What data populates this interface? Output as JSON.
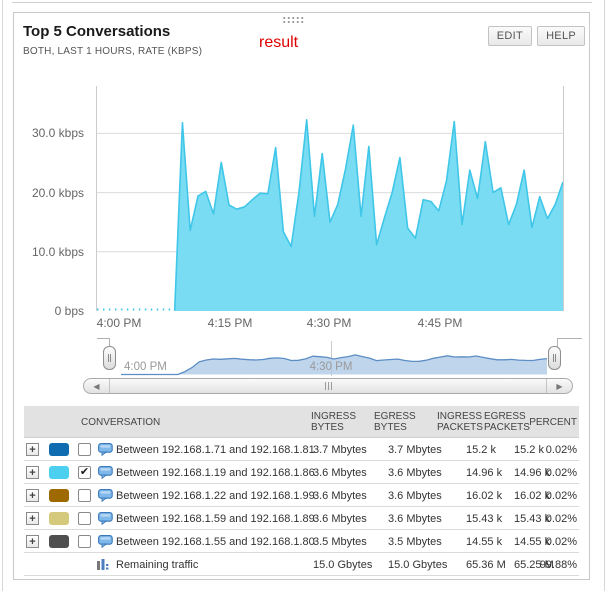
{
  "widget": {
    "title": "Top 5 Conversations",
    "subtitle": "BOTH, LAST 1 HOURS, RATE (KBPS)",
    "annotation": "result",
    "buttons": {
      "edit": "EDIT",
      "help": "HELP"
    }
  },
  "colors": {
    "chart_fill": "#7ADCF2",
    "chart_stroke": "#3FC6E8",
    "brush_fill": "#AFCBE7",
    "brush_stroke": "#5C8EC4",
    "gridline": "#DCDCDC"
  },
  "chart_data": {
    "type": "area",
    "title": "Top 5 Conversations",
    "xlabel": "",
    "ylabel": "rate (kbps)",
    "ylim": [
      0,
      38
    ],
    "x_range": [
      "4:00 PM",
      "5:00 PM"
    ],
    "x_interval": "1 minute",
    "grid": true,
    "y_ticks": [
      {
        "label": "0 bps",
        "value": 0
      },
      {
        "label": "10.0 kbps",
        "value": 10
      },
      {
        "label": "20.0 kbps",
        "value": 20
      },
      {
        "label": "30.0 kbps",
        "value": 30
      }
    ],
    "x_ticks": [
      "4:00 PM",
      "4:15 PM",
      "4:30 PM",
      "4:45 PM"
    ],
    "series": [
      {
        "name": "Between 192.168.1.19 and 192.168.1.86",
        "unit": "kbps",
        "color": "#4DD0F0",
        "values": [
          0.05,
          0.05,
          0.05,
          0.05,
          0.05,
          0.05,
          0.05,
          0.05,
          0.05,
          0.05,
          0.05,
          31.8,
          13.6,
          19.4,
          20.2,
          16.4,
          25.1,
          17.9,
          17.2,
          17.6,
          18.8,
          19.9,
          19.8,
          27.6,
          13.4,
          10.9,
          20.0,
          32.3,
          16.0,
          26.6,
          15.0,
          18.0,
          24.0,
          31.4,
          16.0,
          27.8,
          11.2,
          15.7,
          20.0,
          25.9,
          14.0,
          12.3,
          18.8,
          18.5,
          16.9,
          22.0,
          32.0,
          14.6,
          23.8,
          19.0,
          28.6,
          20.0,
          20.8,
          14.6,
          18.0,
          23.8,
          14.1,
          19.3,
          15.6,
          18.0,
          21.8
        ]
      }
    ]
  },
  "brush": {
    "labels": [
      "4:00 PM",
      "4:30 PM"
    ]
  },
  "table": {
    "headers": {
      "conversation": "CONVERSATION",
      "ingress_bytes": "INGRESS BYTES",
      "egress_bytes": "EGRESS BYTES",
      "ingress_packets": "INGRESS PACKETS",
      "egress_packets": "EGRESS PACKETS",
      "percent": "PERCENT"
    },
    "rows": [
      {
        "color": "#0F6CB0",
        "checked": false,
        "conversation": "Between 192.168.1.71 and 192.168.1.81",
        "ingress_bytes": "3.7 Mbytes",
        "egress_bytes": "3.7 Mbytes",
        "ingress_packets": "15.2 k",
        "egress_packets": "15.2 k",
        "percent": "0.02%"
      },
      {
        "color": "#4DD0F0",
        "checked": true,
        "conversation": "Between 192.168.1.19 and 192.168.1.86",
        "ingress_bytes": "3.6 Mbytes",
        "egress_bytes": "3.6 Mbytes",
        "ingress_packets": "14.96 k",
        "egress_packets": "14.96 k",
        "percent": "0.02%"
      },
      {
        "color": "#9E6A00",
        "checked": false,
        "conversation": "Between 192.168.1.22 and 192.168.1.99",
        "ingress_bytes": "3.6 Mbytes",
        "egress_bytes": "3.6 Mbytes",
        "ingress_packets": "16.02 k",
        "egress_packets": "16.02 k",
        "percent": "0.02%"
      },
      {
        "color": "#D5C97D",
        "checked": false,
        "conversation": "Between 192.168.1.59 and 192.168.1.89",
        "ingress_bytes": "3.6 Mbytes",
        "egress_bytes": "3.6 Mbytes",
        "ingress_packets": "15.43 k",
        "egress_packets": "15.43 k",
        "percent": "0.02%"
      },
      {
        "color": "#4F4F4F",
        "checked": false,
        "conversation": "Between 192.168.1.55 and 192.168.1.80",
        "ingress_bytes": "3.5 Mbytes",
        "egress_bytes": "3.5 Mbytes",
        "ingress_packets": "14.55 k",
        "egress_packets": "14.55 k",
        "percent": "0.02%"
      }
    ],
    "footer": {
      "label": "Remaining traffic",
      "ingress_bytes": "15.0 Gbytes",
      "egress_bytes": "15.0 Gbytes",
      "ingress_packets": "65.36 M",
      "egress_packets": "65.25 M",
      "percent": "99.88%"
    }
  }
}
